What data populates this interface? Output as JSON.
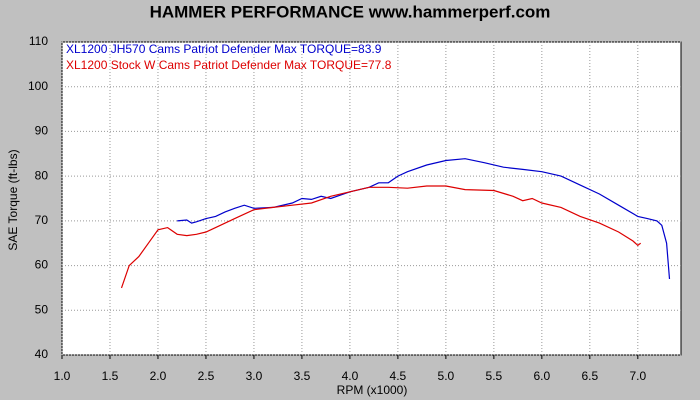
{
  "chart_data": {
    "type": "line",
    "title": "HAMMER PERFORMANCE www.hammerperf.com",
    "x_label": "RPM (x1000)",
    "y_label": "SAE Torque (ft-lbs)",
    "xlim": [
      1,
      7.45
    ],
    "ylim": [
      40,
      110
    ],
    "xticks": [
      {
        "value": 1,
        "label": "1.0"
      },
      {
        "value": 1.5,
        "label": "1.5"
      },
      {
        "value": 2,
        "label": "2.0"
      },
      {
        "value": 2.5,
        "label": "2.5"
      },
      {
        "value": 3,
        "label": "3.0"
      },
      {
        "value": 3.5,
        "label": "3.5"
      },
      {
        "value": 4,
        "label": "4.0"
      },
      {
        "value": 4.5,
        "label": "4.5"
      },
      {
        "value": 5,
        "label": "5.0"
      },
      {
        "value": 5.5,
        "label": "5.5"
      },
      {
        "value": 6,
        "label": "6.0"
      },
      {
        "value": 6.5,
        "label": "6.5"
      },
      {
        "value": 7,
        "label": "7.0"
      }
    ],
    "yticks": [
      40,
      50,
      60,
      70,
      80,
      90,
      100,
      110
    ],
    "grid": true,
    "series": [
      {
        "name": "XL1200 JH570 Cams Patriot Defender  Max TORQUE=83.9",
        "color": "#0000cc",
        "x": [
          2.2,
          2.3,
          2.35,
          2.4,
          2.5,
          2.6,
          2.7,
          2.8,
          2.9,
          3.0,
          3.2,
          3.4,
          3.5,
          3.6,
          3.7,
          3.8,
          4.0,
          4.2,
          4.3,
          4.4,
          4.5,
          4.6,
          4.8,
          5.0,
          5.2,
          5.4,
          5.6,
          5.8,
          6.0,
          6.2,
          6.4,
          6.6,
          6.8,
          7.0,
          7.1,
          7.2,
          7.25,
          7.3,
          7.33
        ],
        "values": [
          70,
          70.2,
          69.5,
          69.8,
          70.5,
          71,
          72,
          72.8,
          73.5,
          72.8,
          73,
          74,
          75,
          74.8,
          75.5,
          75,
          76.5,
          77.5,
          78.5,
          78.5,
          80,
          81,
          82.5,
          83.5,
          83.9,
          83,
          82,
          81.5,
          81,
          80,
          78,
          76,
          73.5,
          71,
          70.5,
          70,
          69,
          65,
          57
        ]
      },
      {
        "name": "XL1200 Stock W Cams Patriot Defender  Max TORQUE=77.8",
        "color": "#dd0000",
        "x": [
          1.62,
          1.7,
          1.8,
          1.9,
          2.0,
          2.1,
          2.2,
          2.3,
          2.4,
          2.5,
          2.6,
          2.8,
          3.0,
          3.2,
          3.4,
          3.6,
          3.8,
          4.0,
          4.2,
          4.4,
          4.6,
          4.8,
          5.0,
          5.2,
          5.5,
          5.7,
          5.8,
          5.9,
          6.0,
          6.2,
          6.4,
          6.6,
          6.8,
          6.95,
          7.0,
          7.03
        ],
        "values": [
          55,
          60,
          62,
          65,
          68,
          68.5,
          67,
          66.7,
          67,
          67.5,
          68.5,
          70.5,
          72.5,
          73,
          73.5,
          74,
          75.5,
          76.5,
          77.5,
          77.5,
          77.3,
          77.8,
          77.8,
          77,
          76.8,
          75.5,
          74.5,
          75,
          74,
          73,
          71,
          69.5,
          67.5,
          65.5,
          64.5,
          65
        ]
      }
    ]
  }
}
